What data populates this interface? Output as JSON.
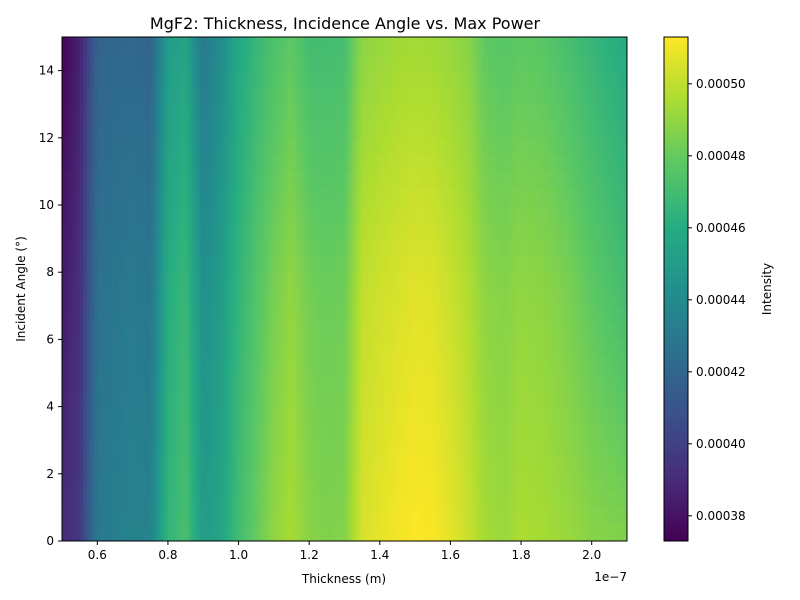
{
  "chart_data": {
    "type": "heatmap",
    "title": "MgF2: Thickness, Incidence Angle vs. Max Power",
    "xlabel": "Thickness (m)",
    "ylabel": "Incident Angle (°)",
    "x_offset_label": "1e−7",
    "colorbar_label": "Intensity",
    "xlim": [
      5e-08,
      2.1e-07
    ],
    "ylim": [
      0,
      15
    ],
    "x_ticks": [
      6e-08,
      8e-08,
      1e-07,
      1.2e-07,
      1.4e-07,
      1.6e-07,
      1.8e-07,
      2e-07
    ],
    "x_tick_labels": [
      "0.6",
      "0.8",
      "1.0",
      "1.2",
      "1.4",
      "1.6",
      "1.8",
      "2.0"
    ],
    "y_ticks": [
      0,
      2,
      4,
      6,
      8,
      10,
      12,
      14
    ],
    "y_tick_labels": [
      "0",
      "2",
      "4",
      "6",
      "8",
      "10",
      "12",
      "14"
    ],
    "colorbar_range": [
      0.000373,
      0.000513
    ],
    "colorbar_ticks": [
      0.00038,
      0.0004,
      0.00042,
      0.00044,
      0.00046,
      0.00048,
      0.0005
    ],
    "colorbar_tick_labels": [
      "0.00038",
      "0.00040",
      "0.00042",
      "0.00044",
      "0.00046",
      "0.00048",
      "0.00050"
    ],
    "colormap": "viridis",
    "grid": false,
    "x": [
      5e-08,
      5.5e-08,
      6e-08,
      6.5e-08,
      7e-08,
      7.5e-08,
      8e-08,
      8.5e-08,
      9e-08,
      9.5e-08,
      1e-07,
      1.05e-07,
      1.1e-07,
      1.15e-07,
      1.2e-07,
      1.25e-07,
      1.3e-07,
      1.35e-07,
      1.4e-07,
      1.45e-07,
      1.5e-07,
      1.55e-07,
      1.6e-07,
      1.65e-07,
      1.7e-07,
      1.75e-07,
      1.8e-07,
      1.85e-07,
      1.9e-07,
      1.95e-07,
      2e-07,
      2.05e-07,
      2.1e-07
    ],
    "y": [
      0,
      7.5,
      15
    ],
    "z": [
      [
        0.00039,
        0.000397,
        0.00043,
        0.000433,
        0.000436,
        0.000435,
        0.000465,
        0.000472,
        0.00045,
        0.000455,
        0.00047,
        0.00048,
        0.00049,
        0.000495,
        0.000488,
        0.000486,
        0.000487,
        0.000505,
        0.000508,
        0.000511,
        0.000513,
        0.000512,
        0.000508,
        0.000502,
        0.000494,
        0.000492,
        0.000496,
        0.000495,
        0.000493,
        0.000491,
        0.000488,
        0.000487,
        0.000486
      ],
      [
        0.000383,
        0.000392,
        0.000426,
        0.000428,
        0.000431,
        0.000428,
        0.00046,
        0.000467,
        0.000443,
        0.00045,
        0.000465,
        0.000475,
        0.000484,
        0.00049,
        0.000483,
        0.000481,
        0.000482,
        0.0005,
        0.000503,
        0.000505,
        0.000507,
        0.000506,
        0.000502,
        0.000497,
        0.000489,
        0.000487,
        0.00049,
        0.000489,
        0.000487,
        0.000483,
        0.000478,
        0.000474,
        0.00047
      ],
      [
        0.000374,
        0.000386,
        0.000418,
        0.00042,
        0.000421,
        0.000418,
        0.00045,
        0.000455,
        0.00043,
        0.000441,
        0.000457,
        0.000466,
        0.000473,
        0.000478,
        0.00047,
        0.00047,
        0.000471,
        0.000489,
        0.000491,
        0.000493,
        0.000494,
        0.000493,
        0.000491,
        0.000488,
        0.000478,
        0.000476,
        0.000478,
        0.000477,
        0.000474,
        0.00047,
        0.000466,
        0.000462,
        0.000459
      ]
    ]
  }
}
